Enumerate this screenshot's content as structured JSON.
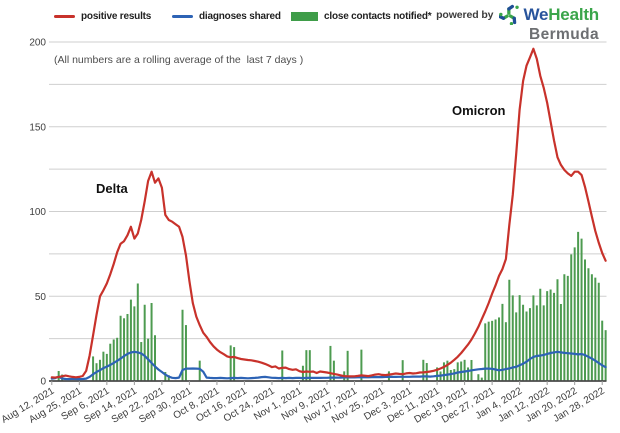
{
  "legend": {
    "items": [
      {
        "label": "positive results",
        "marker": "line",
        "color": "#c8322b"
      },
      {
        "label": "diagnoses shared",
        "marker": "line",
        "color": "#2d63b5"
      },
      {
        "label": "close contacts notified*",
        "marker": "box",
        "color": "#3f9d49"
      }
    ]
  },
  "branding": {
    "powered_by": "powered by",
    "brand_we": "We",
    "brand_health": "Health",
    "brand_region": "Bermuda",
    "colors": {
      "we": "#28549c",
      "health": "#3aa54a",
      "region": "#6d6f72",
      "icon_blue": "#1f4e96",
      "icon_green": "#3aa54a"
    }
  },
  "annotations": {
    "note": "(All numbers are a rolling average of the  last 7 days )",
    "wave1": "Delta",
    "wave2": "Omicron"
  },
  "chart_data": {
    "type": "mixed",
    "x_tick_labels": [
      "Aug 12, 2021",
      "Aug 25, 2021",
      "Sep 6, 2021",
      "Sep 14, 2021",
      "Sep 22, 2021",
      "Sep 30, 2021",
      "Oct 8, 2021",
      "Oct 16, 2021",
      "Oct 24, 2021",
      "Nov 1, 2021",
      "Nov 9, 2021",
      "Nov 17, 2021",
      "Nov 25, 2021",
      "Dec 3, 2021",
      "Dec 11, 2021",
      "Dec 19, 2021",
      "Dec 27, 2021",
      "Jan 4, 2022",
      "Jan 12, 2022",
      "Jan 20, 2022",
      "Jan 28, 2022"
    ],
    "x_tick_step": 8,
    "n_points": 162,
    "ylim": [
      0,
      200
    ],
    "y_major_ticks": [
      0,
      50,
      100,
      150,
      200
    ],
    "y_minor_step": 25,
    "grid": "horizontal",
    "legend_position": "top",
    "colors": {
      "grid": "#cfcfcf",
      "axis": "#4a4a4a",
      "tick_label": "#3d3d3d",
      "y_label": "#404040"
    },
    "series": [
      {
        "name": "positive results",
        "type": "line",
        "color": "#c8322b",
        "values": [
          2.2,
          2.0,
          2.4,
          2.8,
          3.2,
          2.8,
          2.4,
          2.2,
          2.4,
          3.0,
          6,
          15,
          27,
          39,
          50,
          53.5,
          57.5,
          63,
          69,
          76,
          81,
          82.5,
          86,
          91,
          84,
          87,
          95,
          106,
          118,
          123.5,
          117,
          119.5,
          114,
          98,
          95,
          94,
          92.5,
          91,
          85,
          74,
          59,
          46,
          38,
          33,
          28.5,
          26,
          23,
          20.5,
          18.5,
          17,
          15.8,
          14.5,
          14,
          14.2,
          13.5,
          13,
          12.7,
          12.4,
          12.2,
          11.8,
          11.4,
          10.8,
          10.1,
          9.2,
          8.2,
          8.6,
          7.4,
          7.8,
          7.9,
          7.0,
          6.6,
          6.9,
          5.8,
          5.3,
          5.6,
          5.4,
          5.6,
          4.7,
          5.6,
          5.3,
          5.0,
          4.6,
          4.2,
          3.8,
          3.3,
          2.9,
          2.8,
          2.7,
          2.8,
          3.0,
          3.3,
          3.1,
          2.9,
          3.3,
          3.8,
          4.0,
          3.6,
          3.5,
          3.8,
          4.1,
          4.4,
          4.2,
          4.0,
          4.5,
          4.7,
          4.4,
          4.6,
          5.0,
          5.1,
          5.3,
          5.6,
          6.0,
          6.6,
          7.4,
          8.3,
          9.5,
          10.8,
          12.5,
          14.3,
          16.5,
          19,
          21.5,
          24.5,
          28,
          32,
          36.5,
          41,
          46,
          51.5,
          56.5,
          62,
          66,
          72,
          92,
          110,
          134,
          160,
          177,
          186,
          191,
          196,
          190,
          180,
          173,
          164,
          153,
          142,
          132,
          127.5,
          124.5,
          122.5,
          121,
          123.5,
          123.5,
          121.5,
          114.5,
          106,
          97,
          88.5,
          81.5,
          75.5,
          71
        ]
      },
      {
        "name": "diagnoses shared",
        "type": "line",
        "color": "#2d63b5",
        "values": [
          1.4,
          1.7,
          2.6,
          1.5,
          1.2,
          1.1,
          1.3,
          1.2,
          1.1,
          1.2,
          1.4,
          2.4,
          4.0,
          5.3,
          6.4,
          7.6,
          8.5,
          9.5,
          10.7,
          11.9,
          13.2,
          14.7,
          16.0,
          16.8,
          17.2,
          16.9,
          16.3,
          14.8,
          12.8,
          10.6,
          8.6,
          6.8,
          5.3,
          3.8,
          2.6,
          1.9,
          1.7,
          2.0,
          6.5,
          7.3,
          7.3,
          7.4,
          7.3,
          7.2,
          5.5,
          2.0,
          1.8,
          1.7,
          1.7,
          1.8,
          1.7,
          1.6,
          1.7,
          1.8,
          1.7,
          1.8,
          1.7,
          1.6,
          1.7,
          1.8,
          2.0,
          2.3,
          2.4,
          2.2,
          1.9,
          1.8,
          1.7,
          1.8,
          1.7,
          1.8,
          1.7,
          1.8,
          1.8,
          1.7,
          1.8,
          1.9,
          1.8,
          1.9,
          1.8,
          1.9,
          1.9,
          2.0,
          2.0,
          2.0,
          2.0,
          2.1,
          2.1,
          2.1,
          2.1,
          2.2,
          2.2,
          2.2,
          2.2,
          2.3,
          2.3,
          2.3,
          2.3,
          2.4,
          2.4,
          2.4,
          2.4,
          2.5,
          2.5,
          2.5,
          2.5,
          2.6,
          2.6,
          2.6,
          2.7,
          2.7,
          2.6,
          2.8,
          3.0,
          3.2,
          3.5,
          3.8,
          4.1,
          4.5,
          5.0,
          5.3,
          5.6,
          5.9,
          6.3,
          6.6,
          6.9,
          7.1,
          7.3,
          7.3,
          7.2,
          6.8,
          6.3,
          6.6,
          7.0,
          7.4,
          8.0,
          8.3,
          9.3,
          10.2,
          11.4,
          13.0,
          14.2,
          14.8,
          15.0,
          15.4,
          16.0,
          16.5,
          16.9,
          17.2,
          16.9,
          16.6,
          16.4,
          16.2,
          16.0,
          15.7,
          15.9,
          15.3,
          14.3,
          13.2,
          12.0,
          10.6,
          9.2,
          8.2
        ]
      },
      {
        "name": "close contacts notified*",
        "type": "bar",
        "color": "#4d9b50",
        "values": [
          0,
          0,
          5.9,
          3.8,
          0,
          0,
          0,
          0,
          0,
          0,
          0,
          0,
          14.5,
          10.5,
          12.5,
          17.3,
          16,
          22,
          24.5,
          25.5,
          38.5,
          37,
          39.5,
          48,
          44,
          57.5,
          23,
          45,
          25,
          46,
          27,
          0,
          0,
          5.3,
          3.4,
          0,
          0,
          0,
          42,
          33,
          0,
          0,
          0,
          12,
          0,
          0,
          0,
          0,
          0,
          0,
          0,
          0,
          21,
          20,
          0,
          0,
          0,
          0,
          0,
          0,
          0,
          0,
          0,
          0,
          0,
          0,
          0,
          18,
          0,
          0,
          0,
          0,
          0,
          9,
          18.2,
          18.2,
          0,
          0,
          0,
          0,
          0,
          20.7,
          12,
          0,
          0,
          5.7,
          17.8,
          0,
          0,
          0,
          18.5,
          0,
          0,
          0,
          0,
          0,
          0,
          0,
          5.7,
          0,
          0,
          0,
          12.3,
          0,
          0,
          0,
          0,
          0,
          12.5,
          10.6,
          0,
          0,
          8,
          5.6,
          11,
          12,
          6.5,
          7,
          11,
          11.5,
          12.5,
          8,
          12.4,
          0,
          4,
          2,
          34,
          35,
          35.5,
          36.3,
          37.5,
          45.5,
          34.7,
          59.7,
          50.5,
          40.5,
          50.7,
          45,
          41,
          43,
          50.5,
          44.6,
          54.4,
          44.6,
          53,
          54,
          52,
          60,
          45.4,
          63,
          62,
          74.7,
          78.8,
          88,
          84,
          71.7,
          66.5,
          63,
          61,
          58,
          35.6,
          30
        ]
      }
    ]
  }
}
